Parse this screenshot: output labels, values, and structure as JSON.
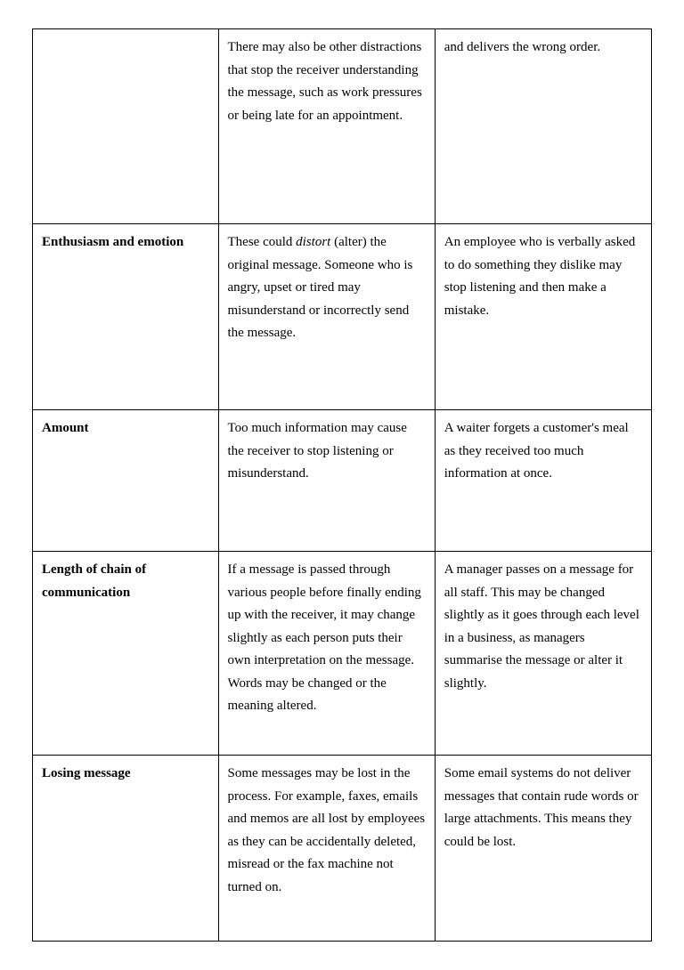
{
  "table": {
    "rows": [
      {
        "col1": "",
        "col2_pre": "There may also be other distractions that stop the receiver understanding the message, such as work pressures or being late for an appointment.",
        "col2_italic": "",
        "col2_post": "",
        "col3": "and delivers the wrong order."
      },
      {
        "col1": "Enthusiasm and emotion",
        "col2_pre": "These could ",
        "col2_italic": "distort",
        "col2_post": " (alter) the original message. Someone who is angry, upset or tired may misunderstand or incorrectly send the message.",
        "col3": "An employee who is verbally asked to do something they dislike may stop listening and then make a mistake."
      },
      {
        "col1": "Amount",
        "col2_pre": "Too much information may cause the receiver to stop listening or misunderstand.",
        "col2_italic": "",
        "col2_post": "",
        "col3": "A waiter forgets a customer's meal as they received too much information at once."
      },
      {
        "col1": "Length of chain of communication",
        "col2_pre": "If a message is passed through various people before finally ending up with the receiver, it may change slightly as each person puts their own interpretation on the message. Words may be changed or the meaning altered.",
        "col2_italic": "",
        "col2_post": "",
        "col3": "A manager passes on a message for all staff. This may be changed slightly as it goes through each level in a business, as managers summarise the message or alter it slightly."
      },
      {
        "col1": "Losing message",
        "col2_pre": "Some messages may be lost in the process. For example, faxes, emails and memos are all lost by employees as they can be accidentally deleted, misread or the fax machine not turned on.",
        "col2_italic": "",
        "col2_post": "",
        "col3": "Some email systems do not deliver messages that contain rude words or large attachments. This means they could be lost."
      }
    ]
  }
}
